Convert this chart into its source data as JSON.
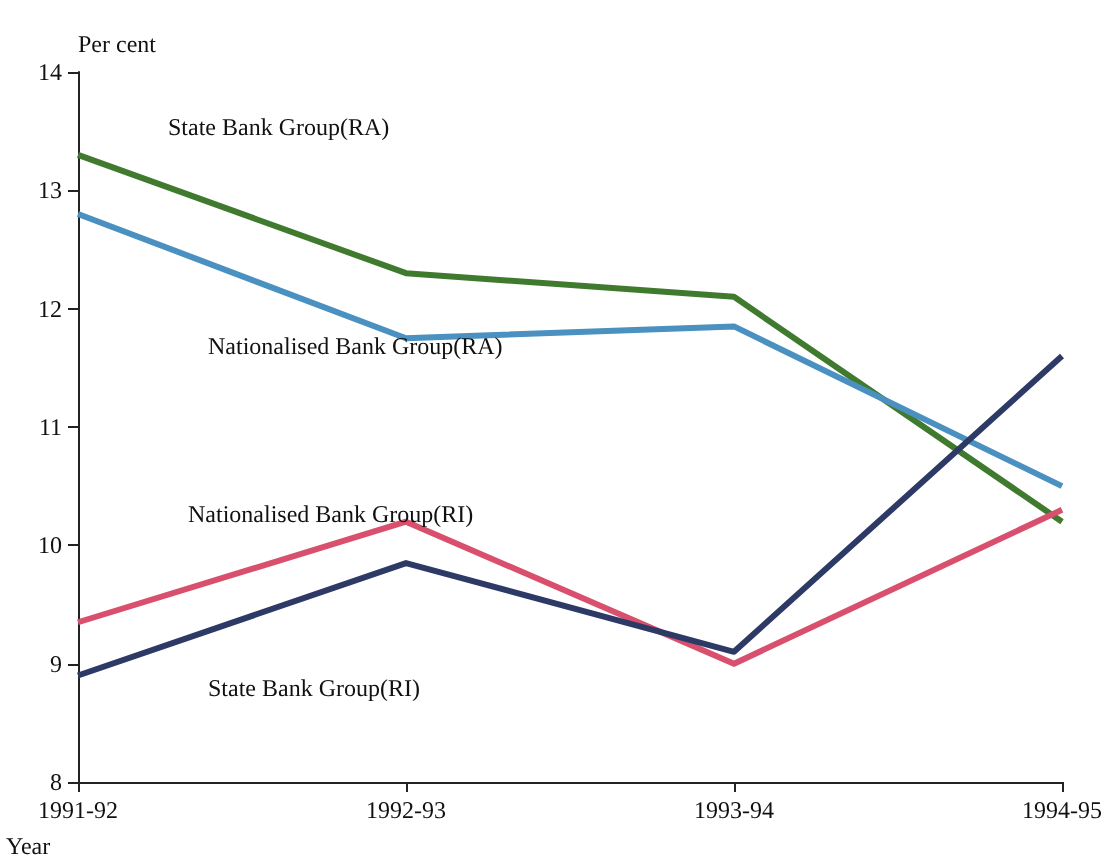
{
  "chart_data": {
    "type": "line",
    "ylabel": "Per cent",
    "xlabel": "Year",
    "categories": [
      "1991-92",
      "1992-93",
      "1993-94",
      "1994-95"
    ],
    "series": [
      {
        "name": "State Bank Group(RA)",
        "color": "#3f7a2e",
        "values": [
          13.3,
          12.3,
          12.1,
          10.2
        ]
      },
      {
        "name": "Nationalised Bank Group(RA)",
        "color": "#4a90c0",
        "values": [
          12.8,
          11.75,
          11.85,
          10.5
        ]
      },
      {
        "name": "Nationalised Bank Group(RI)",
        "color": "#d9506e",
        "values": [
          9.35,
          10.2,
          9.0,
          10.3
        ]
      },
      {
        "name": "State Bank Group(RI)",
        "color": "#2e3a66",
        "values": [
          8.9,
          9.85,
          9.1,
          11.6
        ]
      }
    ],
    "ylim": [
      8,
      14
    ],
    "yticks": [
      8,
      9,
      10,
      11,
      12,
      13,
      14
    ],
    "grid": false,
    "legend": false,
    "marker": "none",
    "line_style": "solid"
  }
}
